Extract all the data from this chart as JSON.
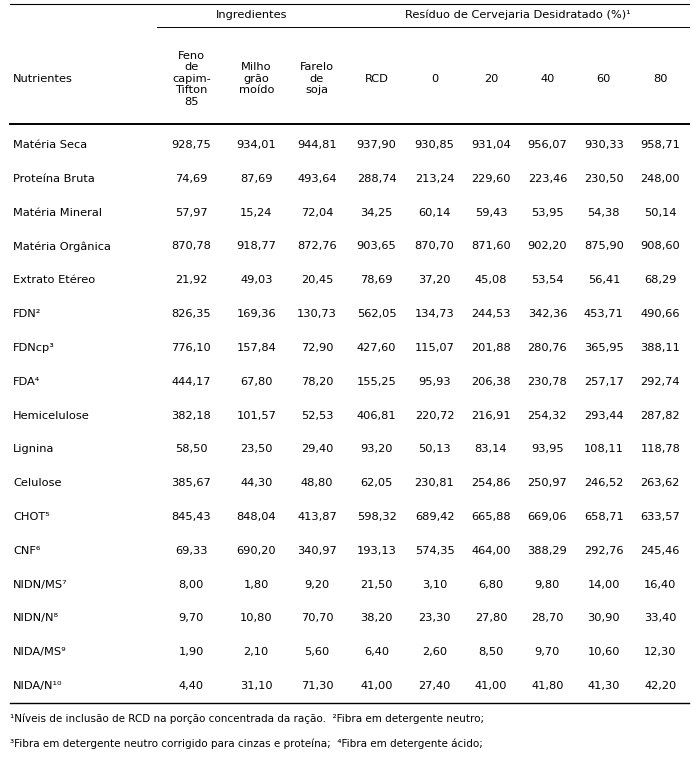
{
  "col_headers": [
    "Nutrientes",
    "Feno\nde\ncapim-\nTifton\n85",
    "Milho\ngrão\nmoído",
    "Farelo\nde\nsoja",
    "RCD",
    "0",
    "20",
    "40",
    "60",
    "80"
  ],
  "rows": [
    [
      "Matéria Seca",
      "928,75",
      "934,01",
      "944,81",
      "937,90",
      "930,85",
      "931,04",
      "956,07",
      "930,33",
      "958,71"
    ],
    [
      "Proteína Bruta",
      "74,69",
      "87,69",
      "493,64",
      "288,74",
      "213,24",
      "229,60",
      "223,46",
      "230,50",
      "248,00"
    ],
    [
      "Matéria Mineral",
      "57,97",
      "15,24",
      "72,04",
      "34,25",
      "60,14",
      "59,43",
      "53,95",
      "54,38",
      "50,14"
    ],
    [
      "Matéria Orgânica",
      "870,78",
      "918,77",
      "872,76",
      "903,65",
      "870,70",
      "871,60",
      "902,20",
      "875,90",
      "908,60"
    ],
    [
      "Extrato Etéreo",
      "21,92",
      "49,03",
      "20,45",
      "78,69",
      "37,20",
      "45,08",
      "53,54",
      "56,41",
      "68,29"
    ],
    [
      "FDN²",
      "826,35",
      "169,36",
      "130,73",
      "562,05",
      "134,73",
      "244,53",
      "342,36",
      "453,71",
      "490,66"
    ],
    [
      "FDNcp³",
      "776,10",
      "157,84",
      "72,90",
      "427,60",
      "115,07",
      "201,88",
      "280,76",
      "365,95",
      "388,11"
    ],
    [
      "FDA⁴",
      "444,17",
      "67,80",
      "78,20",
      "155,25",
      "95,93",
      "206,38",
      "230,78",
      "257,17",
      "292,74"
    ],
    [
      "Hemicelulose",
      "382,18",
      "101,57",
      "52,53",
      "406,81",
      "220,72",
      "216,91",
      "254,32",
      "293,44",
      "287,82"
    ],
    [
      "Lignina",
      "58,50",
      "23,50",
      "29,40",
      "93,20",
      "50,13",
      "83,14",
      "93,95",
      "108,11",
      "118,78"
    ],
    [
      "Celulose",
      "385,67",
      "44,30",
      "48,80",
      "62,05",
      "230,81",
      "254,86",
      "250,97",
      "246,52",
      "263,62"
    ],
    [
      "CHOT⁵",
      "845,43",
      "848,04",
      "413,87",
      "598,32",
      "689,42",
      "665,88",
      "669,06",
      "658,71",
      "633,57"
    ],
    [
      "CNF⁶",
      "69,33",
      "690,20",
      "340,97",
      "193,13",
      "574,35",
      "464,00",
      "388,29",
      "292,76",
      "245,46"
    ],
    [
      "NIDN/MS⁷",
      "8,00",
      "1,80",
      "9,20",
      "21,50",
      "3,10",
      "6,80",
      "9,80",
      "14,00",
      "16,40"
    ],
    [
      "NIDN/N⁸",
      "9,70",
      "10,80",
      "70,70",
      "38,20",
      "23,30",
      "27,80",
      "28,70",
      "30,90",
      "33,40"
    ],
    [
      "NIDA/MS⁹",
      "1,90",
      "2,10",
      "5,60",
      "6,40",
      "2,60",
      "8,50",
      "9,70",
      "10,60",
      "12,30"
    ],
    [
      "NIDA/N¹⁰",
      "4,40",
      "31,10",
      "71,30",
      "41,00",
      "27,40",
      "41,00",
      "41,80",
      "41,30",
      "42,20"
    ]
  ],
  "span_ing_label": "Ingredientes",
  "span_ing_cols": [
    1,
    3
  ],
  "span_res_label": "Resíduo de Cervejaria Desidratado (%)¹",
  "span_res_cols": [
    4,
    9
  ],
  "footnote1": "¹Níveis de inclusão de RCD na porção concentrada da ração.  ²Fibra em detergente neutro;",
  "footnote2": "³Fibra em detergente neutro corrigido para cinzas e proteína;  ⁴Fibra em detergente ácido;",
  "fontsize": 8.2,
  "figsize": [
    6.92,
    7.58
  ]
}
